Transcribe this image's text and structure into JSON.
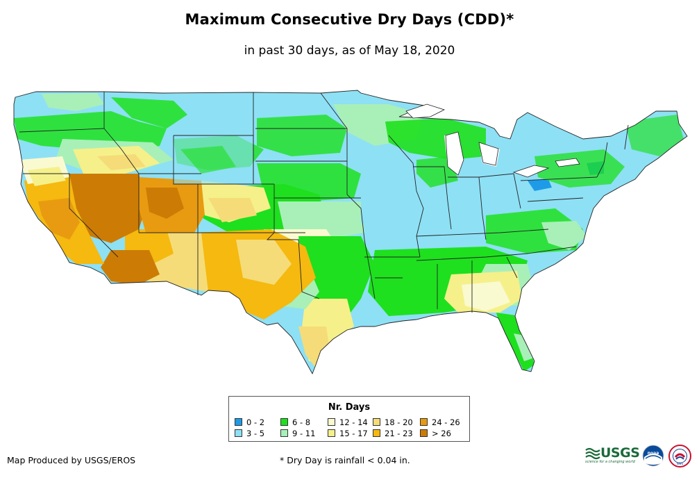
{
  "header": {
    "title": "Maximum Consecutive Dry Days (CDD)*",
    "subtitle": "in past 30 days, as of May 18, 2020"
  },
  "legend": {
    "title": "Nr. Days",
    "items": [
      {
        "label": "0 - 2",
        "color": "#1e9be8"
      },
      {
        "label": "3 - 5",
        "color": "#8ee0f5"
      },
      {
        "label": "6 - 8",
        "color": "#1ee01e"
      },
      {
        "label": "9 - 11",
        "color": "#a8f0b8"
      },
      {
        "label": "12 - 14",
        "color": "#fafad0"
      },
      {
        "label": "15 - 17",
        "color": "#f5f08a"
      },
      {
        "label": "18 - 20",
        "color": "#f5dc78"
      },
      {
        "label": "21 - 23",
        "color": "#f5b90f"
      },
      {
        "label": "24 - 26",
        "color": "#e89b10"
      },
      {
        "label": "> 26",
        "color": "#cc7c05"
      }
    ]
  },
  "footer": {
    "credit": "Map Produced by USGS/EROS",
    "note": "* Dry Day is rainfall < 0.04 in."
  },
  "logos": {
    "usgs": "USGS",
    "usgs_tagline": "science for a changing world",
    "noaa": "noaa",
    "nws": "NWS"
  }
}
